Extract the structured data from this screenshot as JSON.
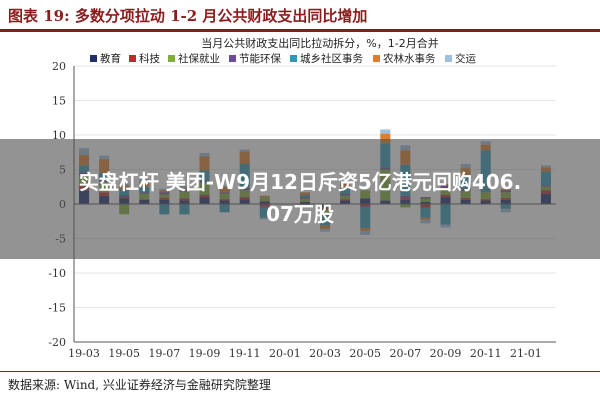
{
  "header": {
    "title": "图表 19:  多数分项拉动 1-2 月公共财政支出同比增加"
  },
  "headline": {
    "line1": "实盘杠杆 美团-W9月12日斥资5亿港元回购406.",
    "line2": "07万股"
  },
  "footer": {
    "source": "数据来源:  Wind,  兴业证券经济与金融研究院整理"
  },
  "chart_data": {
    "type": "bar",
    "stacked": true,
    "title": "当月公共财政支出同比拉动拆分，%，1-2月合并",
    "ylim": [
      -20,
      20
    ],
    "yticks": [
      -20,
      -15,
      -10,
      -5,
      0,
      5,
      10,
      15,
      20
    ],
    "xticks": [
      "19-03",
      "19-05",
      "19-07",
      "19-09",
      "19-11",
      "20-01",
      "20-03",
      "20-05",
      "20-07",
      "20-09",
      "20-11",
      "21-01"
    ],
    "legend_position": "top",
    "categories": [
      "19-03",
      "19-04",
      "19-05",
      "19-06",
      "19-07",
      "19-08",
      "19-09",
      "19-10",
      "19-11",
      "19-12",
      "20-01",
      "20-02",
      "20-03",
      "20-04",
      "20-05",
      "20-06",
      "20-07",
      "20-08",
      "20-09",
      "20-10",
      "20-11",
      "20-12",
      "21-01",
      "21-02"
    ],
    "series": [
      {
        "name": "教育",
        "color": "#1f2f6e",
        "values": [
          2.0,
          1.2,
          0.8,
          0.6,
          0.6,
          0.5,
          1.0,
          0.5,
          0.7,
          0.4,
          0,
          0.3,
          -0.5,
          0.5,
          0.8,
          0.5,
          0.6,
          0.3,
          1.0,
          0.6,
          0.5,
          0.6,
          0,
          1.5
        ]
      },
      {
        "name": "科技",
        "color": "#c0282e",
        "values": [
          0.6,
          0.5,
          0.2,
          0.1,
          0.3,
          0.3,
          0.3,
          0.2,
          0.3,
          -0.3,
          0,
          -0.1,
          -0.3,
          0.2,
          -0.3,
          0.0,
          0.3,
          -0.5,
          0.3,
          0.3,
          0.2,
          0.3,
          0,
          0.5
        ]
      },
      {
        "name": "社保就业",
        "color": "#7fae3c",
        "values": [
          1.5,
          1.5,
          -1.5,
          0.8,
          0.5,
          1.0,
          1.8,
          0.8,
          1.0,
          0.6,
          0,
          0.5,
          -0.5,
          0.5,
          1.2,
          4.5,
          -0.5,
          0.5,
          1.0,
          1.0,
          1.0,
          0.8,
          0,
          0.5
        ]
      },
      {
        "name": "节能环保",
        "color": "#6a4a9b",
        "values": [
          0.5,
          0.3,
          0.3,
          0.2,
          0.3,
          0.3,
          0.3,
          0.2,
          0.3,
          -0.2,
          0,
          0.2,
          -0.3,
          0.3,
          -0.2,
          0.3,
          0.3,
          0.2,
          0.3,
          0.3,
          0.1,
          0.3,
          0,
          0.2
        ]
      },
      {
        "name": "城乡社区事务",
        "color": "#2e98b6",
        "values": [
          1.0,
          1.0,
          0.8,
          0.8,
          -1.5,
          -1.5,
          1.5,
          -1.2,
          3.5,
          -1.5,
          0,
          0.3,
          -1.5,
          0.8,
          -3.0,
          3.5,
          4.5,
          -1.5,
          -3.0,
          2.0,
          6.0,
          -0.7,
          0,
          2.0
        ]
      },
      {
        "name": "农林水事务",
        "color": "#de7e2b",
        "values": [
          1.5,
          2.0,
          0.6,
          0.5,
          0.3,
          0.2,
          2.0,
          0.8,
          1.8,
          0.2,
          0,
          0.4,
          -0.5,
          0.6,
          -0.4,
          1.4,
          2.1,
          -0.3,
          0.3,
          1.0,
          0.8,
          0.2,
          0,
          0.6
        ]
      },
      {
        "name": "交运",
        "color": "#9fbfe0",
        "values": [
          1.0,
          0.5,
          0.3,
          0.6,
          0.2,
          0.4,
          0.5,
          0.2,
          0.3,
          -0.2,
          0,
          -0.3,
          -0.4,
          0.3,
          -0.6,
          0.6,
          0.7,
          -0.5,
          -0.4,
          0.6,
          0.5,
          -0.5,
          0,
          0.3
        ]
      }
    ]
  }
}
